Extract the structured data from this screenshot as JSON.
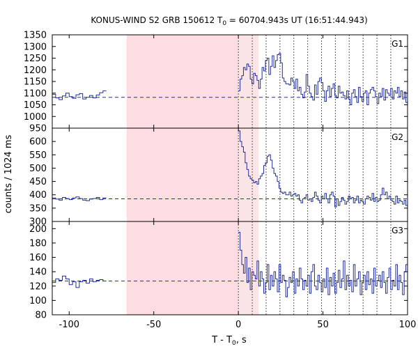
{
  "chart_data": {
    "type": "line",
    "title_main": "KONUS-WIND S2 GRB 150612 T",
    "title_sub": "0",
    "title_rest": " = 60704.943s UT (16:51:44.943)",
    "xlabel_main": "T - T",
    "xlabel_sub": "0",
    "xlabel_rest": ", s",
    "ylabel": "counts / 1024 ms",
    "xlim": [
      -110,
      100
    ],
    "xticks": [
      "-100",
      "-50",
      "0",
      "50",
      "100"
    ],
    "xtick_values": [
      -100,
      -50,
      0,
      50,
      100
    ],
    "shaded_interval": [
      -66,
      0
    ],
    "shaded_interval_2": [
      0,
      12
    ],
    "vertical_lines": [
      0,
      8.2,
      16.4,
      24.6,
      32.8,
      41,
      49.2,
      57.3,
      65.5,
      73.7,
      81.9,
      90.1
    ],
    "panels": [
      {
        "name": "G1",
        "ylim": [
          950,
          1350
        ],
        "yticks": [
          "950",
          "1000",
          "1050",
          "1100",
          "1150",
          "1200",
          "1250",
          "1300",
          "1350"
        ],
        "ytick_values": [
          950,
          1000,
          1050,
          1100,
          1150,
          1200,
          1250,
          1300,
          1350
        ],
        "background": 1082,
        "bg_x": [
          -110,
          -108,
          -106,
          -104,
          -102,
          -100,
          -98,
          -96,
          -94,
          -92,
          -90,
          -88,
          -86,
          -84,
          -82,
          -80
        ],
        "bg_y": [
          1095,
          1080,
          1072,
          1088,
          1100,
          1085,
          1078,
          1093,
          1098,
          1075,
          1082,
          1090,
          1080,
          1092,
          1102,
          1110
        ],
        "x": [
          0,
          1,
          2,
          3,
          4,
          5,
          6,
          7,
          8,
          9,
          10,
          11,
          12,
          13,
          14,
          15,
          16,
          17,
          18,
          19,
          20,
          21,
          22,
          23,
          24,
          25,
          26,
          27,
          28,
          29,
          30,
          31,
          32,
          33,
          34,
          35,
          36,
          37,
          38,
          39,
          40,
          41,
          42,
          43,
          44,
          45,
          46,
          47,
          48,
          49,
          50,
          51,
          52,
          53,
          54,
          55,
          56,
          57,
          58,
          59,
          60,
          61,
          62,
          63,
          64,
          65,
          66,
          67,
          68,
          69,
          70,
          71,
          72,
          73,
          74,
          75,
          76,
          77,
          78,
          79,
          80,
          81,
          82,
          83,
          84,
          85,
          86,
          87,
          88,
          89,
          90,
          91,
          92,
          93,
          94,
          95,
          96,
          97,
          98,
          99
        ],
        "y": [
          1110,
          1160,
          1175,
          1210,
          1200,
          1225,
          1215,
          1160,
          1140,
          1185,
          1175,
          1155,
          1120,
          1160,
          1210,
          1195,
          1240,
          1250,
          1180,
          1215,
          1260,
          1210,
          1240,
          1265,
          1270,
          1230,
          1165,
          1150,
          1140,
          1140,
          1135,
          1165,
          1150,
          1120,
          1160,
          1110,
          1125,
          1095,
          1080,
          1105,
          1180,
          1130,
          1100,
          1085,
          1070,
          1135,
          1095,
          1150,
          1165,
          1145,
          1110,
          1065,
          1110,
          1130,
          1085,
          1120,
          1140,
          1090,
          1080,
          1130,
          1100,
          1105,
          1090,
          1075,
          1110,
          1075,
          1050,
          1100,
          1115,
          1085,
          1060,
          1125,
          1085,
          1065,
          1100,
          1110,
          1050,
          1100,
          1115,
          1125,
          1110,
          1085,
          1055,
          1100,
          1085,
          1120,
          1070,
          1115,
          1100,
          1090,
          1120,
          1075,
          1110,
          1100,
          1125,
          1085,
          1110,
          1075,
          1105,
          1060
        ]
      },
      {
        "name": "G2",
        "ylim": [
          300,
          650
        ],
        "yticks": [
          "300",
          "350",
          "400",
          "450",
          "500",
          "550",
          "600"
        ],
        "ytick_values": [
          300,
          350,
          400,
          450,
          500,
          550,
          600
        ],
        "background": 385,
        "bg_x": [
          -110,
          -108,
          -106,
          -104,
          -102,
          -100,
          -98,
          -96,
          -94,
          -92,
          -90,
          -88,
          -86,
          -84,
          -82,
          -80
        ],
        "bg_y": [
          388,
          384,
          380,
          390,
          386,
          382,
          388,
          392,
          386,
          380,
          378,
          384,
          386,
          390,
          382,
          388
        ],
        "x": [
          0,
          1,
          2,
          3,
          4,
          5,
          6,
          7,
          8,
          9,
          10,
          11,
          12,
          13,
          14,
          15,
          16,
          17,
          18,
          19,
          20,
          21,
          22,
          23,
          24,
          25,
          26,
          27,
          28,
          29,
          30,
          31,
          32,
          33,
          34,
          35,
          36,
          37,
          38,
          39,
          40,
          41,
          42,
          43,
          44,
          45,
          46,
          47,
          48,
          49,
          50,
          51,
          52,
          53,
          54,
          55,
          56,
          57,
          58,
          59,
          60,
          61,
          62,
          63,
          64,
          65,
          66,
          67,
          68,
          69,
          70,
          71,
          72,
          73,
          74,
          75,
          76,
          77,
          78,
          79,
          80,
          81,
          82,
          83,
          84,
          85,
          86,
          87,
          88,
          89,
          90,
          91,
          92,
          93,
          94,
          95,
          96,
          97,
          98,
          99
        ],
        "y": [
          640,
          600,
          580,
          560,
          520,
          495,
          470,
          460,
          455,
          445,
          450,
          440,
          460,
          470,
          480,
          510,
          520,
          545,
          550,
          530,
          500,
          480,
          470,
          450,
          425,
          410,
          405,
          410,
          400,
          400,
          410,
          395,
          400,
          405,
          395,
          400,
          380,
          370,
          385,
          390,
          400,
          380,
          385,
          375,
          390,
          410,
          395,
          380,
          370,
          395,
          385,
          405,
          385,
          370,
          400,
          410,
          395,
          355,
          385,
          360,
          375,
          390,
          380,
          365,
          375,
          395,
          385,
          390,
          370,
          380,
          395,
          370,
          380,
          375,
          365,
          385,
          395,
          390,
          380,
          405,
          375,
          390,
          375,
          380,
          400,
          425,
          400,
          410,
          385,
          395,
          380,
          375,
          365,
          395,
          370,
          380,
          375,
          365,
          380,
          360
        ]
      },
      {
        "name": "G3",
        "ylim": [
          80,
          210
        ],
        "yticks": [
          "80",
          "100",
          "120",
          "140",
          "160",
          "180",
          "200"
        ],
        "ytick_values": [
          80,
          100,
          120,
          140,
          160,
          180,
          200
        ],
        "background": 127,
        "bg_x": [
          -110,
          -108,
          -106,
          -104,
          -102,
          -100,
          -98,
          -96,
          -94,
          -92,
          -90,
          -88,
          -86,
          -84,
          -82,
          -80
        ],
        "bg_y": [
          125,
          130,
          128,
          134,
          130,
          122,
          126,
          118,
          126,
          128,
          124,
          130,
          126,
          128,
          129,
          127
        ],
        "x": [
          0,
          1,
          2,
          3,
          4,
          5,
          6,
          7,
          8,
          9,
          10,
          11,
          12,
          13,
          14,
          15,
          16,
          17,
          18,
          19,
          20,
          21,
          22,
          23,
          24,
          25,
          26,
          27,
          28,
          29,
          30,
          31,
          32,
          33,
          34,
          35,
          36,
          37,
          38,
          39,
          40,
          41,
          42,
          43,
          44,
          45,
          46,
          47,
          48,
          49,
          50,
          51,
          52,
          53,
          54,
          55,
          56,
          57,
          58,
          59,
          60,
          61,
          62,
          63,
          64,
          65,
          66,
          67,
          68,
          69,
          70,
          71,
          72,
          73,
          74,
          75,
          76,
          77,
          78,
          79,
          80,
          81,
          82,
          83,
          84,
          85,
          86,
          87,
          88,
          89,
          90,
          91,
          92,
          93,
          94,
          95,
          96,
          97,
          98,
          99
        ],
        "y": [
          195,
          170,
          150,
          138,
          160,
          125,
          145,
          115,
          140,
          135,
          130,
          155,
          120,
          140,
          130,
          110,
          125,
          150,
          115,
          135,
          120,
          140,
          130,
          112,
          150,
          125,
          135,
          128,
          105,
          118,
          132,
          125,
          140,
          110,
          130,
          120,
          145,
          130,
          115,
          128,
          120,
          135,
          110,
          140,
          150,
          120,
          115,
          135,
          125,
          112,
          130,
          118,
          145,
          108,
          132,
          120,
          138,
          110,
          125,
          142,
          118,
          130,
          155,
          115,
          135,
          120,
          128,
          112,
          150,
          120,
          130,
          140,
          108,
          125,
          135,
          115,
          140,
          122,
          130,
          110,
          145,
          120,
          128,
          135,
          118,
          140,
          125,
          110,
          132,
          145,
          115,
          128,
          120,
          150,
          115,
          135,
          125,
          108,
          140,
          150
        ]
      }
    ]
  }
}
